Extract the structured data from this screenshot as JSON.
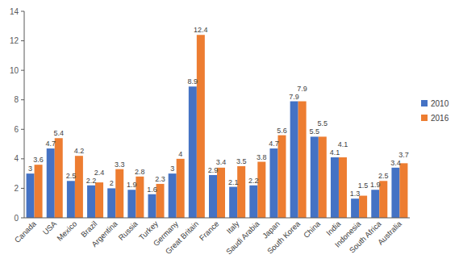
{
  "chart_data": {
    "type": "bar",
    "categories": [
      "Canada",
      "USA",
      "Mexico",
      "Brazil",
      "Argentina",
      "Russia",
      "Turkey",
      "Germany",
      "Great Britain",
      "France",
      "Italy",
      "Saudi Arabia",
      "Japan",
      "South Korea",
      "China",
      "India",
      "Indonesia",
      "South Africa",
      "Australia"
    ],
    "series": [
      {
        "name": "2010",
        "color": "#4472c4",
        "values": [
          3,
          4.7,
          2.5,
          2.2,
          2,
          1.9,
          1.6,
          3,
          8.9,
          2.9,
          2.1,
          2.2,
          4.7,
          7.9,
          5.5,
          4.1,
          1.3,
          1.9,
          3.4
        ]
      },
      {
        "name": "2016",
        "color": "#ed7d31",
        "values": [
          3.6,
          5.4,
          4.2,
          2.4,
          3.3,
          2.8,
          2.3,
          4,
          12.4,
          3.4,
          3.5,
          3.8,
          5.6,
          7.9,
          5.5,
          4.1,
          1.5,
          2.5,
          3.7
        ]
      }
    ],
    "ylim": [
      0,
      14
    ],
    "yticks": [
      0,
      2,
      4,
      6,
      8,
      10,
      12,
      14
    ],
    "grid": false,
    "legend": "right",
    "data_labels": true
  }
}
